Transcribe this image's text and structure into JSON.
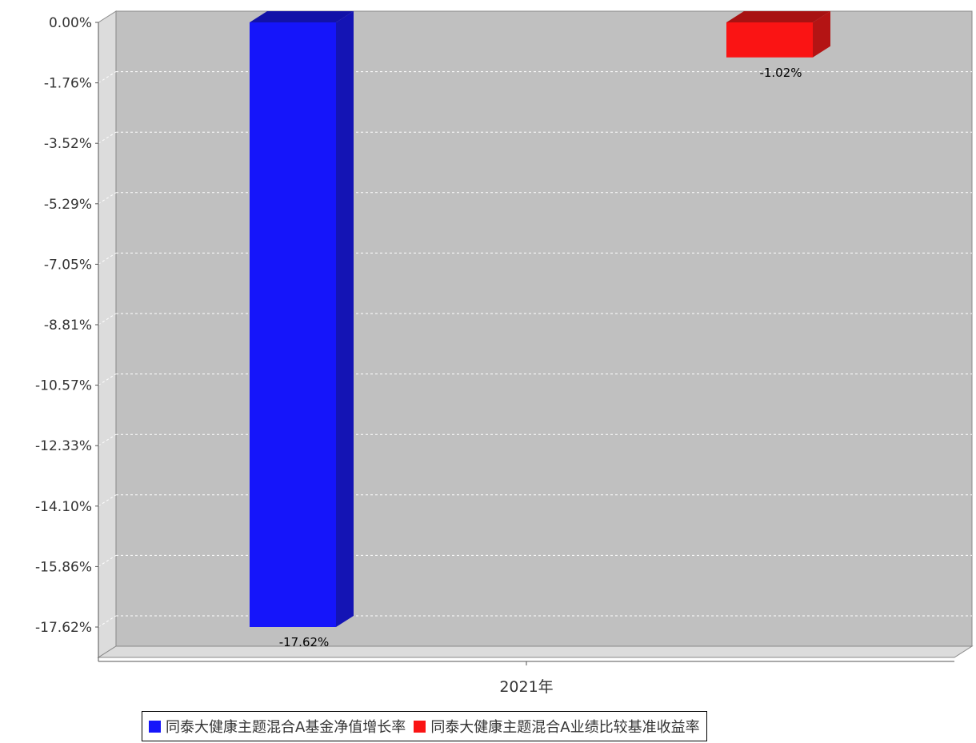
{
  "chart_data": {
    "type": "bar",
    "categories": [
      "2021年"
    ],
    "series": [
      {
        "name": "同泰大健康主题混合A基金净值增长率",
        "values": [
          -17.62
        ],
        "label": "-17.62%",
        "color": "#1515fa",
        "side_color": "#1414b4",
        "top_color": "#1212a8"
      },
      {
        "name": "同泰大健康主题混合A业绩比较基准收益率",
        "values": [
          -1.02
        ],
        "label": "-1.02%",
        "color": "#fa1414",
        "side_color": "#b41414",
        "top_color": "#a81212"
      }
    ],
    "y_ticks": [
      "0.00%",
      "-1.76%",
      "-3.52%",
      "-5.29%",
      "-7.05%",
      "-8.81%",
      "-10.57%",
      "-12.33%",
      "-14.10%",
      "-15.86%",
      "-17.62%"
    ],
    "ylim": [
      -17.62,
      0
    ],
    "grid": true,
    "legend_position": "bottom",
    "title": "",
    "xlabel": "",
    "ylabel": ""
  }
}
